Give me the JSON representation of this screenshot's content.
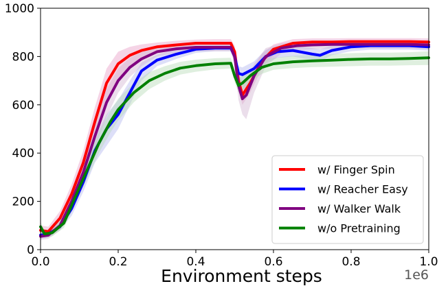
{
  "chart_data": {
    "type": "line",
    "title": "",
    "xlabel": "Environment steps",
    "ylabel": "",
    "x_scale_label": "1e6",
    "xlim": [
      0.0,
      1.0
    ],
    "ylim": [
      0,
      1000
    ],
    "xticks": [
      {
        "value": 0.0,
        "label": "0.0"
      },
      {
        "value": 0.2,
        "label": "0.2"
      },
      {
        "value": 0.4,
        "label": "0.4"
      },
      {
        "value": 0.6,
        "label": "0.6"
      },
      {
        "value": 0.8,
        "label": "0.8"
      },
      {
        "value": 1.0,
        "label": "1.0"
      }
    ],
    "yticks": [
      {
        "value": 0,
        "label": "0"
      },
      {
        "value": 200,
        "label": "200"
      },
      {
        "value": 400,
        "label": "400"
      },
      {
        "value": 600,
        "label": "600"
      },
      {
        "value": 800,
        "label": "800"
      },
      {
        "value": 1000,
        "label": "1000"
      }
    ],
    "grid": false,
    "legend_position": "lower-right",
    "series": [
      {
        "name": "w/ Finger Spin",
        "color": "#ff0000",
        "band_color": "#e8a0c8",
        "x": [
          0.0,
          0.02,
          0.05,
          0.08,
          0.11,
          0.14,
          0.17,
          0.2,
          0.23,
          0.26,
          0.3,
          0.35,
          0.4,
          0.45,
          0.49,
          0.5,
          0.51,
          0.52,
          0.54,
          0.57,
          0.6,
          0.65,
          0.7,
          0.75,
          0.8,
          0.85,
          0.9,
          0.95,
          1.0
        ],
        "y": [
          80,
          75,
          130,
          230,
          360,
          530,
          690,
          770,
          805,
          825,
          840,
          848,
          855,
          855,
          855,
          820,
          700,
          640,
          690,
          780,
          830,
          855,
          860,
          860,
          862,
          862,
          862,
          862,
          860
        ],
        "lower": [
          60,
          55,
          100,
          190,
          310,
          460,
          610,
          700,
          760,
          790,
          815,
          825,
          833,
          835,
          835,
          790,
          660,
          600,
          650,
          750,
          805,
          835,
          843,
          845,
          848,
          848,
          848,
          848,
          845
        ],
        "upper": [
          100,
          95,
          160,
          270,
          410,
          590,
          750,
          820,
          840,
          850,
          858,
          865,
          870,
          872,
          872,
          845,
          740,
          690,
          730,
          810,
          850,
          872,
          875,
          875,
          876,
          876,
          876,
          876,
          875
        ]
      },
      {
        "name": "w/ Reacher Easy",
        "color": "#0000ff",
        "band_color": "#b3b8f0",
        "x": [
          0.0,
          0.02,
          0.05,
          0.08,
          0.11,
          0.14,
          0.17,
          0.2,
          0.23,
          0.26,
          0.3,
          0.35,
          0.4,
          0.45,
          0.49,
          0.5,
          0.51,
          0.52,
          0.55,
          0.58,
          0.61,
          0.65,
          0.7,
          0.72,
          0.75,
          0.8,
          0.85,
          0.9,
          0.95,
          1.0
        ],
        "y": [
          60,
          65,
          95,
          170,
          280,
          410,
          500,
          560,
          650,
          740,
          785,
          810,
          830,
          835,
          835,
          800,
          730,
          725,
          750,
          800,
          820,
          825,
          810,
          805,
          825,
          840,
          845,
          845,
          845,
          840
        ],
        "lower": [
          45,
          50,
          80,
          140,
          240,
          360,
          430,
          500,
          600,
          700,
          760,
          790,
          815,
          822,
          822,
          775,
          700,
          695,
          720,
          770,
          795,
          800,
          785,
          780,
          805,
          822,
          828,
          828,
          828,
          825
        ],
        "upper": [
          75,
          80,
          115,
          200,
          320,
          460,
          560,
          620,
          700,
          775,
          808,
          830,
          845,
          848,
          848,
          825,
          760,
          755,
          780,
          828,
          842,
          848,
          835,
          830,
          845,
          858,
          862,
          862,
          862,
          858
        ]
      },
      {
        "name": "w/ Walker Walk",
        "color": "#800080",
        "band_color": "#d3b5d3",
        "x": [
          0.0,
          0.02,
          0.05,
          0.08,
          0.11,
          0.14,
          0.17,
          0.2,
          0.23,
          0.26,
          0.3,
          0.35,
          0.4,
          0.45,
          0.49,
          0.5,
          0.51,
          0.52,
          0.53,
          0.55,
          0.58,
          0.62,
          0.66,
          0.7,
          0.75,
          0.8,
          0.85,
          0.9,
          0.95,
          1.0
        ],
        "y": [
          55,
          60,
          100,
          200,
          320,
          470,
          610,
          700,
          755,
          790,
          820,
          832,
          838,
          838,
          838,
          800,
          680,
          625,
          640,
          720,
          800,
          835,
          845,
          848,
          850,
          850,
          850,
          850,
          850,
          848
        ],
        "lower": [
          40,
          45,
          80,
          165,
          280,
          420,
          550,
          650,
          715,
          760,
          800,
          815,
          822,
          822,
          822,
          770,
          620,
          560,
          540,
          650,
          760,
          812,
          826,
          830,
          833,
          833,
          833,
          833,
          833,
          830
        ],
        "upper": [
          70,
          75,
          125,
          235,
          360,
          520,
          665,
          750,
          795,
          818,
          840,
          850,
          854,
          854,
          854,
          830,
          730,
          690,
          700,
          770,
          835,
          855,
          862,
          864,
          866,
          866,
          866,
          866,
          866,
          864
        ]
      },
      {
        "name": "w/o Pretraining",
        "color": "#008000",
        "band_color": "#b8dcb8",
        "x": [
          0.0,
          0.01,
          0.03,
          0.06,
          0.09,
          0.12,
          0.15,
          0.18,
          0.2,
          0.24,
          0.28,
          0.32,
          0.36,
          0.4,
          0.45,
          0.49,
          0.5,
          0.51,
          0.52,
          0.54,
          0.57,
          0.6,
          0.65,
          0.7,
          0.75,
          0.8,
          0.85,
          0.9,
          0.95,
          1.0
        ],
        "y": [
          95,
          65,
          70,
          110,
          220,
          330,
          440,
          530,
          580,
          650,
          700,
          730,
          752,
          762,
          770,
          772,
          720,
          680,
          690,
          720,
          755,
          770,
          778,
          782,
          785,
          788,
          790,
          790,
          792,
          795
        ],
        "lower": [
          75,
          50,
          55,
          90,
          190,
          295,
          400,
          485,
          535,
          610,
          665,
          700,
          725,
          737,
          747,
          750,
          695,
          650,
          660,
          693,
          728,
          745,
          752,
          756,
          758,
          760,
          762,
          762,
          764,
          765
        ],
        "upper": [
          115,
          80,
          85,
          135,
          255,
          370,
          485,
          575,
          625,
          690,
          735,
          760,
          778,
          787,
          793,
          795,
          745,
          710,
          720,
          747,
          782,
          795,
          803,
          808,
          810,
          814,
          816,
          816,
          818,
          822
        ]
      }
    ]
  }
}
